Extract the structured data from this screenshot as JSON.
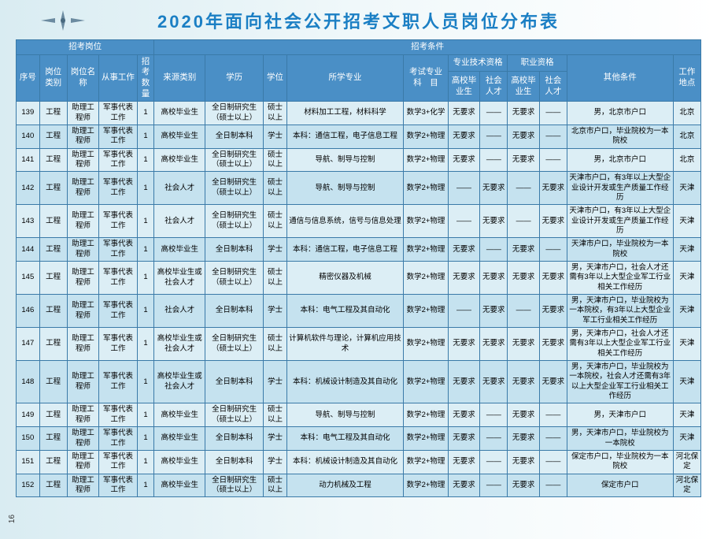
{
  "title": "2020年面向社会公开招考文职人员岗位分布表",
  "page_number": "16",
  "header_groups": {
    "group1": "招考岗位",
    "group2": "招考条件",
    "sub_prof": "专业技术资格",
    "sub_occ": "职业资格"
  },
  "columns": [
    "序号",
    "岗位类别",
    "岗位名称",
    "从事工作",
    "招考数量",
    "来源类别",
    "学历",
    "学位",
    "所学专业",
    "考试专业科　目",
    "高校毕业生",
    "社会人才",
    "高校毕业生",
    "社会人才",
    "其他条件",
    "工作地点"
  ],
  "rows": [
    [
      "139",
      "工程",
      "助理工程师",
      "军事代表工作",
      "1",
      "高校毕业生",
      "全日制研究生（硕士以上）",
      "硕士以上",
      "材料加工工程，材料科学",
      "数学3+化学",
      "无要求",
      "——",
      "无要求",
      "——",
      "男，北京市户口",
      "北京"
    ],
    [
      "140",
      "工程",
      "助理工程师",
      "军事代表工作",
      "1",
      "高校毕业生",
      "全日制本科",
      "学士",
      "本科：通信工程，电子信息工程",
      "数学2+物理",
      "无要求",
      "——",
      "无要求",
      "——",
      "北京市户口，毕业院校为一本院校",
      "北京"
    ],
    [
      "141",
      "工程",
      "助理工程师",
      "军事代表工作",
      "1",
      "高校毕业生",
      "全日制研究生（硕士以上）",
      "硕士以上",
      "导航、制导与控制",
      "数学2+物理",
      "无要求",
      "——",
      "无要求",
      "——",
      "男，北京市户口",
      "北京"
    ],
    [
      "142",
      "工程",
      "助理工程师",
      "军事代表工作",
      "1",
      "社会人才",
      "全日制研究生（硕士以上）",
      "硕士以上",
      "导航、制导与控制",
      "数学2+物理",
      "——",
      "无要求",
      "——",
      "无要求",
      "天津市户口，有3年以上大型企业设计开发或生产质量工作经历",
      "天津"
    ],
    [
      "143",
      "工程",
      "助理工程师",
      "军事代表工作",
      "1",
      "社会人才",
      "全日制研究生（硕士以上）",
      "硕士以上",
      "通信与信息系统，信号与信息处理",
      "数学2+物理",
      "——",
      "无要求",
      "——",
      "无要求",
      "天津市户口，有3年以上大型企业设计开发或生产质量工作经历",
      "天津"
    ],
    [
      "144",
      "工程",
      "助理工程师",
      "军事代表工作",
      "1",
      "高校毕业生",
      "全日制本科",
      "学士",
      "本科：通信工程，电子信息工程",
      "数学2+物理",
      "无要求",
      "——",
      "无要求",
      "——",
      "天津市户口，毕业院校为一本院校",
      "天津"
    ],
    [
      "145",
      "工程",
      "助理工程师",
      "军事代表工作",
      "1",
      "高校毕业生或社会人才",
      "全日制研究生（硕士以上）",
      "硕士以上",
      "精密仪器及机械",
      "数学2+物理",
      "无要求",
      "无要求",
      "无要求",
      "无要求",
      "男，天津市户口，社会人才还需有3年以上大型企业军工行业相关工作经历",
      "天津"
    ],
    [
      "146",
      "工程",
      "助理工程师",
      "军事代表工作",
      "1",
      "社会人才",
      "全日制本科",
      "学士",
      "本科：电气工程及其自动化",
      "数学2+物理",
      "——",
      "无要求",
      "——",
      "无要求",
      "男，天津市户口，毕业院校为一本院校，有3年以上大型企业军工行业相关工作经历",
      "天津"
    ],
    [
      "147",
      "工程",
      "助理工程师",
      "军事代表工作",
      "1",
      "高校毕业生或社会人才",
      "全日制研究生（硕士以上）",
      "硕士以上",
      "计算机软件与理论，计算机应用技术",
      "数学2+物理",
      "无要求",
      "无要求",
      "无要求",
      "无要求",
      "男，天津市户口，社会人才还需有3年以上大型企业军工行业相关工作经历",
      "天津"
    ],
    [
      "148",
      "工程",
      "助理工程师",
      "军事代表工作",
      "1",
      "高校毕业生或社会人才",
      "全日制本科",
      "学士",
      "本科：机械设计制造及其自动化",
      "数学2+物理",
      "无要求",
      "无要求",
      "无要求",
      "无要求",
      "男，天津市户口，毕业院校为一本院校，社会人才还需有3年以上大型企业军工行业相关工作经历",
      "天津"
    ],
    [
      "149",
      "工程",
      "助理工程师",
      "军事代表工作",
      "1",
      "高校毕业生",
      "全日制研究生（硕士以上）",
      "硕士以上",
      "导航、制导与控制",
      "数学2+物理",
      "无要求",
      "——",
      "无要求",
      "——",
      "男，天津市户口",
      "天津"
    ],
    [
      "150",
      "工程",
      "助理工程师",
      "军事代表工作",
      "1",
      "高校毕业生",
      "全日制本科",
      "学士",
      "本科：电气工程及其自动化",
      "数学2+物理",
      "无要求",
      "——",
      "无要求",
      "——",
      "男，天津市户口，毕业院校为一本院校",
      "天津"
    ],
    [
      "151",
      "工程",
      "助理工程师",
      "军事代表工作",
      "1",
      "高校毕业生",
      "全日制本科",
      "学士",
      "本科：机械设计制造及其自动化",
      "数学2+物理",
      "无要求",
      "——",
      "无要求",
      "——",
      "保定市户口，毕业院校为一本院校",
      "河北保定"
    ],
    [
      "152",
      "工程",
      "助理工程师",
      "军事代表工作",
      "1",
      "高校毕业生",
      "全日制研究生（硕士以上）",
      "硕士以上",
      "动力机械及工程",
      "数学2+物理",
      "无要求",
      "——",
      "无要求",
      "——",
      "保定市户口",
      "河北保定"
    ]
  ]
}
